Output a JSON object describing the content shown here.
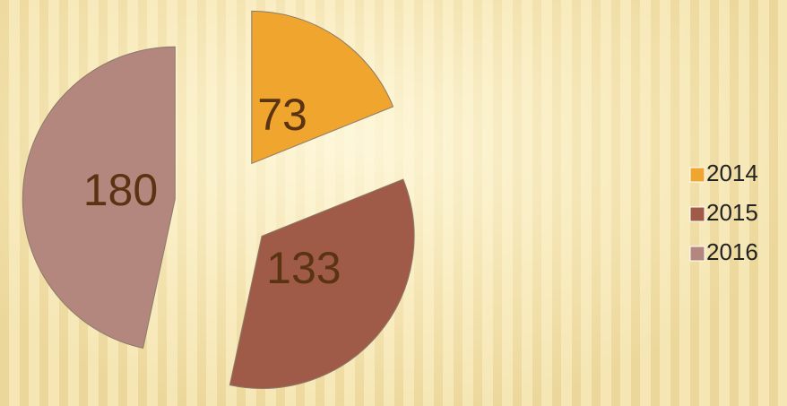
{
  "chart_data": {
    "type": "pie",
    "categories": [
      "2014",
      "2015",
      "2016"
    ],
    "values": [
      73,
      133,
      180
    ],
    "colors": [
      "#f0a52e",
      "#a05b48",
      "#b3877d"
    ],
    "legend": "right"
  }
}
